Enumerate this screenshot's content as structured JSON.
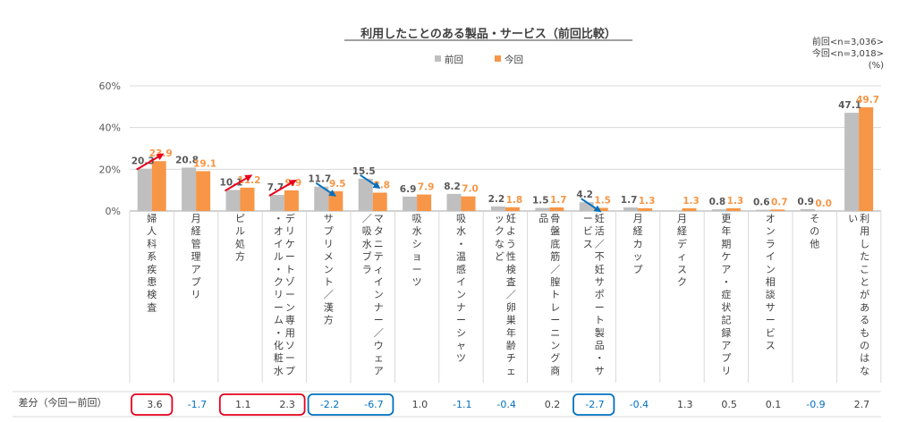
{
  "chart_data": {
    "type": "bar",
    "title": "利用したことのある製品・サービス（前回比較）",
    "notes": [
      "前回<n=3,036>",
      "今回<n=3,018>",
      "(%)"
    ],
    "ylim": [
      0,
      60
    ],
    "yticks": [
      "0%",
      "20%",
      "40%",
      "60%"
    ],
    "categories": [
      "婦人科系疾患検査",
      "月経管理アプリ",
      "ピル処方",
      "デリケートゾーン専用ソープ・オイル・クリーム・化粧水",
      "サプリメント／漢方",
      "マタニティインナー／ウェア／吸水ブラ",
      "吸水ショーツ",
      "吸水・温感インナーシャツ",
      "妊よう性検査／卵巣年齢チェックなど",
      "骨盤底筋／膣トレーニング商品",
      "妊活／不妊サポート製品・サービス",
      "月経カップ",
      "月経ディスク",
      "更年期ケア・症状記録アプリ",
      "オンライン相談サービス",
      "その他",
      "利用したことがあるものはない"
    ],
    "series": [
      {
        "name": "前回",
        "color": "#bfbfbf",
        "values": [
          20.3,
          20.8,
          10.1,
          7.7,
          11.7,
          15.5,
          6.9,
          8.2,
          2.2,
          1.5,
          4.2,
          1.7,
          null,
          0.8,
          0.6,
          0.9,
          47.1
        ]
      },
      {
        "name": "今回",
        "color": "#f79646",
        "values": [
          23.9,
          19.1,
          11.2,
          9.9,
          9.5,
          8.8,
          7.9,
          7.0,
          1.8,
          1.7,
          1.5,
          1.3,
          1.3,
          1.3,
          0.7,
          0.0,
          49.7
        ]
      }
    ],
    "diff_row": {
      "label": "差分（今回ー前回）",
      "values": [
        "3.6",
        "-1.7",
        "1.1",
        "2.3",
        "-2.2",
        "-6.7",
        "1.0",
        "-1.1",
        "-0.4",
        "0.2",
        "-2.7",
        "-0.4",
        "1.3",
        "0.5",
        "0.1",
        "-0.9",
        "2.7"
      ]
    },
    "arrows_up": [
      0,
      2,
      3
    ],
    "arrows_down": [
      4,
      5,
      10
    ],
    "boxed_up": [
      [
        0,
        0
      ],
      [
        2,
        3
      ]
    ],
    "boxed_down": [
      [
        4,
        5
      ],
      [
        10,
        10
      ]
    ],
    "colors": {
      "up": "#e8001c",
      "down": "#0070c0",
      "neutral": "#404040"
    }
  }
}
